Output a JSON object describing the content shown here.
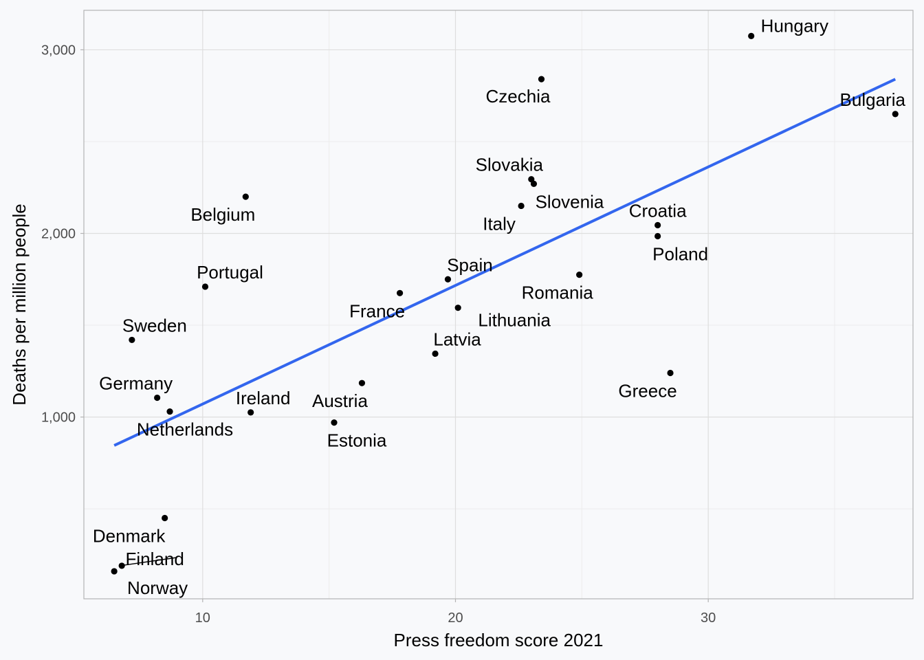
{
  "chart_data": {
    "type": "scatter",
    "title": "",
    "xlabel": "Press freedom score 2021",
    "ylabel": "Deaths per million people",
    "xlim": [
      5.3,
      38.1
    ],
    "ylim": [
      10,
      3215
    ],
    "x_ticks": [
      10,
      20,
      30
    ],
    "x_tick_labels": [
      "10",
      "20",
      "30"
    ],
    "y_ticks": [
      1000,
      2000,
      3000
    ],
    "y_tick_labels": [
      "1,000",
      "2,000",
      "3,000"
    ],
    "grid": true,
    "legend": "none",
    "trend_line": {
      "x": [
        6.5,
        37.4
      ],
      "y": [
        845,
        2840
      ],
      "color": "#3366ee"
    },
    "point_color": "#000000",
    "points": [
      {
        "label": "Hungary",
        "x": 31.7,
        "y": 3075
      },
      {
        "label": "Czechia",
        "x": 23.4,
        "y": 2840
      },
      {
        "label": "Bulgaria",
        "x": 37.4,
        "y": 2650
      },
      {
        "label": "Slovakia",
        "x": 23.0,
        "y": 2295
      },
      {
        "label": "Slovenia",
        "x": 23.1,
        "y": 2270
      },
      {
        "label": "Italy",
        "x": 22.6,
        "y": 2150
      },
      {
        "label": "Belgium",
        "x": 11.7,
        "y": 2200
      },
      {
        "label": "Croatia",
        "x": 28.0,
        "y": 2045
      },
      {
        "label": "Poland",
        "x": 28.0,
        "y": 1985
      },
      {
        "label": "Spain",
        "x": 19.7,
        "y": 1750
      },
      {
        "label": "Romania",
        "x": 24.9,
        "y": 1775
      },
      {
        "label": "Portugal",
        "x": 10.1,
        "y": 1710
      },
      {
        "label": "France",
        "x": 17.8,
        "y": 1675
      },
      {
        "label": "Lithuania",
        "x": 20.1,
        "y": 1595
      },
      {
        "label": "Sweden",
        "x": 7.2,
        "y": 1420
      },
      {
        "label": "Latvia",
        "x": 19.2,
        "y": 1345
      },
      {
        "label": "Greece",
        "x": 28.5,
        "y": 1240
      },
      {
        "label": "Austria",
        "x": 16.3,
        "y": 1185
      },
      {
        "label": "Germany",
        "x": 8.2,
        "y": 1105
      },
      {
        "label": "Netherlands",
        "x": 8.7,
        "y": 1030
      },
      {
        "label": "Ireland",
        "x": 11.9,
        "y": 1025
      },
      {
        "label": "Estonia",
        "x": 15.2,
        "y": 970
      },
      {
        "label": "Denmark",
        "x": 8.5,
        "y": 450
      },
      {
        "label": "Finland",
        "x": 6.8,
        "y": 190
      },
      {
        "label": "Norway",
        "x": 6.5,
        "y": 160
      }
    ]
  }
}
